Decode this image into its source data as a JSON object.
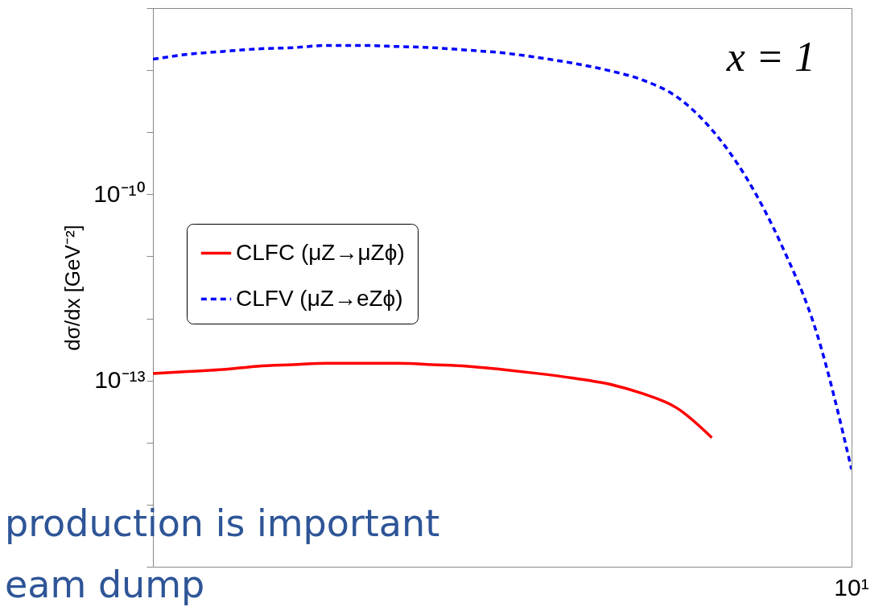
{
  "chart_data": {
    "type": "line",
    "ylabel": "dσ/dx [GeV⁻²]",
    "log": "y",
    "grid": false,
    "legend": "left",
    "marker": "none",
    "tick_labels": "y",
    "categories": [
      null,
      null,
      null,
      null,
      null,
      null,
      null,
      null,
      null,
      null,
      null,
      null,
      null,
      null,
      null,
      null,
      null,
      null,
      null,
      null,
      null
    ],
    "ylim": [
      1e-16,
      1e-07
    ],
    "yticks": [
      {
        "value": 1e-16,
        "label": null
      },
      {
        "value": 1e-15,
        "label": null
      },
      {
        "value": 1e-14,
        "label": null
      },
      {
        "value": 1e-13,
        "label": "10⁻¹³"
      },
      {
        "value": 1e-12,
        "label": null
      },
      {
        "value": 1e-11,
        "label": null
      },
      {
        "value": 1e-10,
        "label": "10⁻¹⁰"
      },
      {
        "value": 1e-09,
        "label": null
      },
      {
        "value": 1e-08,
        "label": null
      },
      {
        "value": 1e-07,
        "label": null
      }
    ],
    "annotations": [
      "x = 1",
      "10¹",
      "production is important",
      "eam dump"
    ],
    "series": [
      {
        "name": "CLFC (μZ→μZϕ)",
        "color": "#ff0000",
        "line_style": "solid",
        "values": [
          1.3e-13,
          1.4e-13,
          1.5e-13,
          1.7e-13,
          1.8e-13,
          1.9e-13,
          1.9e-13,
          1.9e-13,
          1.8e-13,
          1.7e-13,
          1.5e-13,
          1.3e-13,
          1.1e-13,
          8.9e-14,
          6.2e-14,
          3.6e-14,
          1.2e-14,
          null,
          null,
          null,
          null
        ]
      },
      {
        "name": "CLFV (μZ→eZϕ)",
        "color": "#0000ff",
        "line_style": "dashed",
        "values": [
          1.5e-08,
          1.8e-08,
          2e-08,
          2.2e-08,
          2.3e-08,
          2.5e-08,
          2.5e-08,
          2.4e-08,
          2.3e-08,
          2.1e-08,
          1.9e-08,
          1.6e-08,
          1.3e-08,
          1e-08,
          7e-09,
          3.7e-09,
          1.1e-09,
          1.8e-10,
          1.5e-11,
          5.9e-13,
          3.7e-15
        ]
      }
    ]
  }
}
